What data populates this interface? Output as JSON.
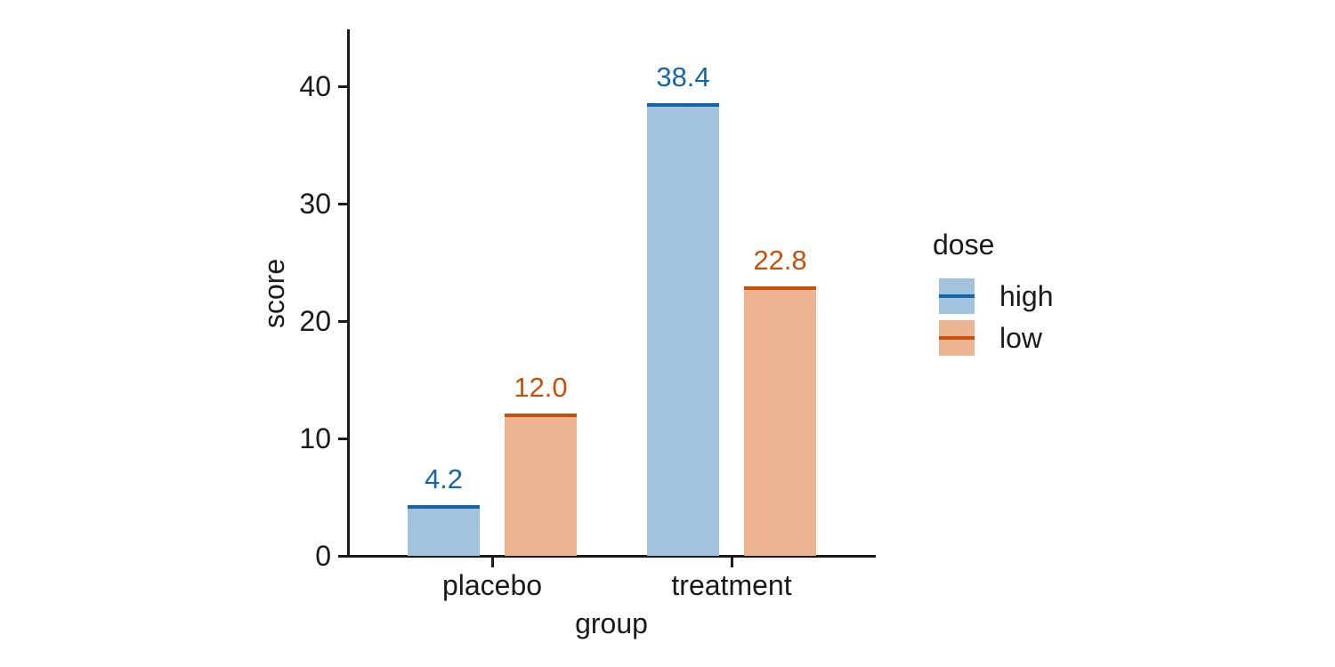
{
  "figure": {
    "background": "#ffffff",
    "text_color": "#1a1a1a"
  },
  "chart_data": {
    "type": "bar",
    "title": "",
    "xlabel": "group",
    "ylabel": "score",
    "categories": [
      "placebo",
      "treatment"
    ],
    "series": [
      {
        "name": "high",
        "values": [
          4.2,
          38.4
        ],
        "labels": [
          "4.2",
          "38.4"
        ],
        "fill": "#a2c2de",
        "edge": "#1565a9"
      },
      {
        "name": "low",
        "values": [
          12.0,
          22.8
        ],
        "labels": [
          "12.0",
          "22.8"
        ],
        "fill": "#edb491",
        "edge": "#c8500d"
      }
    ],
    "yticks": [
      0,
      10,
      20,
      30,
      40
    ],
    "ylim": [
      0,
      44.8
    ],
    "grid": false,
    "legend": {
      "title": "dose",
      "position": "right",
      "entries": [
        "high",
        "low"
      ]
    }
  }
}
